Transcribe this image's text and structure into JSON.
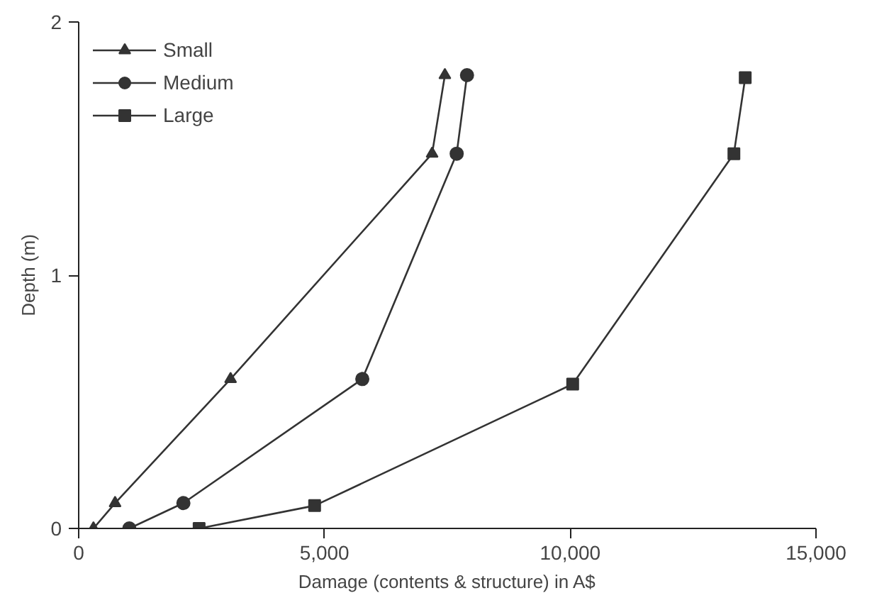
{
  "chart_data": {
    "type": "line",
    "xlabel": "Damage (contents & structure) in A$",
    "ylabel": "Depth (m)",
    "xlim": [
      0,
      15000
    ],
    "ylim": [
      0,
      2
    ],
    "xticks": [
      {
        "value": 0,
        "label": "0"
      },
      {
        "value": 5000,
        "label": "5,000"
      },
      {
        "value": 10000,
        "label": "10,000"
      },
      {
        "value": 15000,
        "label": "15,000"
      }
    ],
    "yticks": [
      0,
      1,
      2
    ],
    "grid": false,
    "legend": "top left",
    "series": [
      {
        "name": "Small",
        "color": "#333333",
        "marker": "triangle",
        "x": [
          300,
          740,
          3090,
          7190,
          7450
        ],
        "values": [
          0,
          0.1,
          0.59,
          1.48,
          1.79
        ]
      },
      {
        "name": "Medium",
        "color": "#333333",
        "marker": "circle",
        "x": [
          1030,
          2130,
          5770,
          7690,
          7900
        ],
        "values": [
          0,
          0.1,
          0.59,
          1.48,
          1.79
        ]
      },
      {
        "name": "Large",
        "color": "#333333",
        "marker": "square",
        "x": [
          2450,
          4800,
          10050,
          13330,
          13560
        ],
        "values": [
          0,
          0.09,
          0.57,
          1.48,
          1.78
        ]
      }
    ]
  }
}
